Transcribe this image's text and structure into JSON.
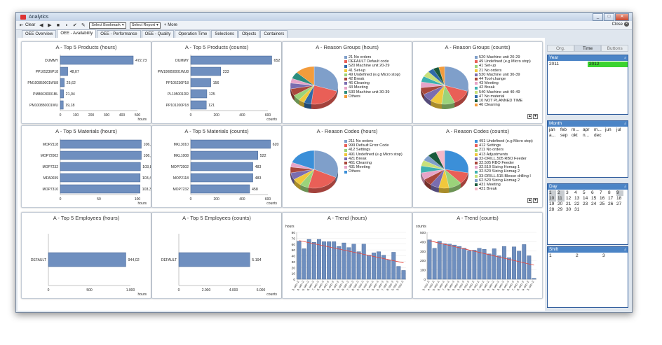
{
  "window": {
    "title": "Analytics",
    "win_buttons": [
      "_",
      "□",
      "✕"
    ]
  },
  "toolbar": {
    "clear": "Clear",
    "bookmark": "Select Bookmark",
    "report": "Select Report",
    "more": "More",
    "close": "Close"
  },
  "tabs": [
    "OEE Overview",
    "OEE - Availability",
    "OEE - Performance",
    "OEE - Quality",
    "Operation Time",
    "Selections",
    "Objects",
    "Containers"
  ],
  "active_tab": 1,
  "panels": {
    "p1": {
      "title": "A - Top 5 Products (hours)"
    },
    "p2": {
      "title": "A - Top 5 Products (counts)"
    },
    "p3": {
      "title": "A - Reason Groups (hours)"
    },
    "p4": {
      "title": "A - Reason Groups (counts)"
    },
    "p5": {
      "title": "A - Top 5 Materials (hours)"
    },
    "p6": {
      "title": "A - Top 5 Materials (counts)"
    },
    "p7": {
      "title": "A - Reason Codes (hours)"
    },
    "p8": {
      "title": "A - Reason Codes (counts)"
    },
    "p9": {
      "title": "A - Top 5 Employees (hours)"
    },
    "p10": {
      "title": "A - Top 5 Employees (counts)"
    },
    "p11": {
      "title": "A - Trend (hours)"
    },
    "p12": {
      "title": "A - Trend (counts)"
    }
  },
  "chart_data": [
    {
      "id": "p1",
      "type": "bar",
      "orientation": "horizontal",
      "title": "A - Top 5 Products (hours)",
      "categories": [
        "DUMMY",
        "PP105236P18",
        "PM100850001WU8",
        "PM80630001BL",
        "PM100850001WU"
      ],
      "values": [
        472.73,
        48.07,
        25.62,
        21.04,
        19.18
      ],
      "value_labels": [
        "472,73",
        "48,07",
        "25,62",
        "21,04",
        "19,18"
      ],
      "xlim": [
        0,
        500
      ],
      "ticks": [
        "0",
        "100",
        "200",
        "300",
        "400",
        "500"
      ],
      "xlabel": "hours"
    },
    {
      "id": "p2",
      "type": "bar",
      "orientation": "horizontal",
      "title": "A - Top 5 Products (counts)",
      "categories": [
        "DUMMY",
        "PW100850001WU8",
        "PP105236P18",
        "PL105001DR",
        "PP101200P18"
      ],
      "values": [
        652,
        233,
        156,
        125,
        121
      ],
      "value_labels": [
        "652",
        "233",
        "156",
        "125",
        "121"
      ],
      "xlim": [
        0,
        600
      ],
      "ticks": [
        "0",
        "200",
        "400",
        "600"
      ],
      "xlabel": "counts"
    },
    {
      "id": "p5",
      "type": "bar",
      "orientation": "horizontal",
      "title": "A - Top 5 Materials (hours)",
      "categories": [
        "MOP2118",
        "MOP72002",
        "MOP7232",
        "MFA0039",
        "MOP7310"
      ],
      "values": [
        106.15,
        106.15,
        103.88,
        103.47,
        103.32
      ],
      "value_labels": [
        "106,15",
        "106,15",
        "103,88",
        "103,47",
        "103,32"
      ],
      "xlim": [
        0,
        100
      ],
      "ticks": [
        "0",
        "50",
        "100"
      ],
      "xlabel": "hours"
    },
    {
      "id": "p6",
      "type": "bar",
      "orientation": "horizontal",
      "title": "A - Top 5 Materials (counts)",
      "categories": [
        "MKL3010",
        "MKL1008",
        "MOP72002",
        "MOP2118",
        "MOP7232"
      ],
      "values": [
        620,
        522,
        483,
        483,
        458
      ],
      "value_labels": [
        "620",
        "522",
        "483",
        "483",
        "458"
      ],
      "xlim": [
        0,
        600
      ],
      "ticks": [
        "0",
        "200",
        "400",
        "600"
      ],
      "xlabel": "counts"
    },
    {
      "id": "p9",
      "type": "bar",
      "orientation": "horizontal",
      "title": "A - Top 5 Employees (hours)",
      "categories": [
        "DEFAULT"
      ],
      "values": [
        944.02
      ],
      "value_labels": [
        "944,02"
      ],
      "xlim": [
        0,
        1000
      ],
      "ticks": [
        "0",
        "500",
        "1.000"
      ],
      "xlabel": "hours"
    },
    {
      "id": "p10",
      "type": "bar",
      "orientation": "horizontal",
      "title": "A - Top 5 Employees (counts)",
      "categories": [
        "DEFAULT"
      ],
      "values": [
        5194
      ],
      "value_labels": [
        "5.194"
      ],
      "xlim": [
        0,
        6000
      ],
      "ticks": [
        "0",
        "2.000",
        "4.000",
        "6.000"
      ],
      "xlabel": "counts"
    },
    {
      "id": "p3",
      "type": "pie",
      "title": "A - Reason Groups (hours)",
      "labels": [
        "21 No orders",
        "DEFAULT Default code",
        "520 Machine unit 20-29",
        "41 Set-up",
        "49 Undefined (e.g Micro stop)",
        "42 Break",
        "46 Cleaning",
        "43 Meeting",
        "530 Machine unit 30-39",
        "Others"
      ],
      "values": [
        30,
        22,
        5,
        4,
        5,
        6,
        5,
        4,
        6,
        13
      ],
      "colors": [
        "#7f9fca",
        "#e95f57",
        "#2f6aa8",
        "#f0c83c",
        "#9bd37a",
        "#a9473c",
        "#7a6db0",
        "#e6a4c8",
        "#2c8d7e",
        "#f39c3c"
      ]
    },
    {
      "id": "p4",
      "type": "pie",
      "title": "A - Reason Groups (counts)",
      "labels": [
        "520 Machine unit 20-29",
        "49 Undefined (e.g Micro stop)",
        "41 Set-up",
        "21 No orders",
        "530 Machine unit 30-39",
        "44 Tool-change",
        "43 Meeting",
        "42 Break",
        "540 Machine unit 40-49",
        "47 No material",
        "10 NOT PLANNED TIME",
        "46 Cleaning"
      ],
      "values": [
        30,
        13,
        9,
        8,
        7,
        6,
        5,
        5,
        5,
        4,
        4,
        4
      ],
      "colors": [
        "#7f9fca",
        "#e95f57",
        "#9bd37a",
        "#f0c83c",
        "#7a6db0",
        "#a9473c",
        "#e6a4c8",
        "#3db0b0",
        "#c8e07a",
        "#2f6aa8",
        "#1b5a3c",
        "#f39c3c"
      ]
    },
    {
      "id": "p7",
      "type": "pie",
      "title": "A - Reason Codes (hours)",
      "labels": [
        "211 No orders",
        "999 Default Error Code",
        "412 Settings",
        "491 Undefined (e.g Micro stop)",
        "421 Break",
        "461 Cleaning",
        "431 Meeting",
        "Others"
      ],
      "values": [
        32,
        22,
        6,
        6,
        6,
        5,
        4,
        19
      ],
      "colors": [
        "#7f9fca",
        "#e95f57",
        "#9bd37a",
        "#f0c83c",
        "#7a6db0",
        "#a9473c",
        "#e6a4c8",
        "#3b8fd8"
      ]
    },
    {
      "id": "p8",
      "type": "pie",
      "title": "A - Reason Codes (counts)",
      "labels": [
        "491 Undefined (e.g Micro stop)",
        "412 Settings",
        "211 No orders",
        "413 Adjustments",
        "32-DRILL.505 RBO Feeder",
        "32.505 RBO Feeder",
        "32.510 Sizing Homag 1",
        "32.520 Sizing Homag 2",
        "33-DRILL.515 Blesse drilling l",
        "62.520 Sizing Homag 2",
        "431 Meeting",
        "421 Break"
      ],
      "values": [
        28,
        10,
        9,
        7,
        6,
        6,
        6,
        6,
        5,
        5,
        6,
        6
      ],
      "colors": [
        "#3b8fd8",
        "#e95f57",
        "#9bd37a",
        "#f0c83c",
        "#7a6db0",
        "#a9473c",
        "#e6a4c8",
        "#3db0b0",
        "#c8e07a",
        "#7f9fca",
        "#1b5a3c",
        "#f5b8c8"
      ]
    },
    {
      "id": "p11",
      "type": "bar",
      "title": "A - Trend (hours)",
      "ylabel": "hours",
      "ylim": [
        0,
        80
      ],
      "yticks": [
        "0",
        "10",
        "20",
        "30",
        "40",
        "50",
        "60",
        "70",
        "80"
      ],
      "values": [
        65,
        52,
        68,
        63,
        68,
        64,
        64,
        64,
        56,
        62,
        54,
        60,
        47,
        60,
        41,
        45,
        47,
        41,
        33,
        46,
        22,
        15
      ],
      "trend": [
        66,
        28
      ],
      "x_labels": [
        "3.-sep.-2",
        "4.-sep.-2",
        "5.-sep.-2",
        "6.-sep.-2",
        "7.-sep.-2",
        "8.-sep.-2",
        "9.-sep.-2",
        "3.-sep.-2",
        "4.-sep.-2",
        "5.-sep.-2",
        "6.-sep.-2",
        "7.-sep.-2",
        "8.-sep.-2",
        "9.-sep.-2",
        "3.-sep.-2",
        "4.-sep.-2",
        "5.-sep.-2",
        "6.-sep.-2",
        "7.-sep.-2",
        "8.-sep.-2",
        "9.-sep.-2",
        "3.-sep.-2"
      ]
    },
    {
      "id": "p12",
      "type": "bar",
      "title": "A - Trend (counts)",
      "ylabel": "counts",
      "ylim": [
        0,
        500
      ],
      "yticks": [
        "0",
        "100",
        "200",
        "300",
        "400",
        "500"
      ],
      "values": [
        420,
        330,
        405,
        380,
        375,
        365,
        350,
        330,
        305,
        310,
        330,
        320,
        270,
        325,
        250,
        350,
        230,
        345,
        300,
        370,
        250,
        10
      ],
      "trend": [
        410,
        150
      ],
      "x_labels": [
        "3.-sep.-2",
        "4.-sep.-2",
        "5.-sep.-2",
        "6.-sep.-2",
        "7.-sep.-2",
        "8.-sep.-2",
        "9.-sep.-2",
        "3.-sep.-2",
        "4.-sep.-2",
        "5.-sep.-2",
        "6.-sep.-2",
        "7.-sep.-2",
        "8.-sep.-2",
        "9.-sep.-2",
        "3.-sep.-2",
        "4.-sep.-2",
        "5.-sep.-2",
        "6.-sep.-2",
        "7.-sep.-2",
        "8.-sep.-2",
        "9.-sep.-2",
        "3.-sep.-2"
      ]
    }
  ],
  "sidebar": {
    "tabs": [
      "Org.",
      "Time",
      "Buttons"
    ],
    "year": {
      "title": "Year",
      "values": [
        "2011",
        "2012"
      ]
    },
    "month": {
      "title": "Month",
      "values": [
        "jan",
        "feb",
        "m...",
        "apr",
        "m...",
        "jun",
        "jul",
        "a...",
        "sep",
        "okt",
        "n...",
        "dec"
      ]
    },
    "day": {
      "title": "Day",
      "values": [
        "1",
        "2",
        "3",
        "4",
        "5",
        "6",
        "7",
        "8",
        "9",
        "10",
        "11",
        "12",
        "13",
        "14",
        "15",
        "16",
        "17",
        "18",
        "19",
        "20",
        "21",
        "22",
        "23",
        "24",
        "25",
        "26",
        "27",
        "28",
        "29",
        "30",
        "31"
      ]
    },
    "shift": {
      "title": "Shift",
      "values": [
        "1",
        "2",
        "3"
      ]
    }
  },
  "colors": {
    "bar": "#6f8fbf",
    "bar_edge": "#3f5f8f",
    "trend_line": "#e8443a",
    "select_green": "#3bd32f",
    "listbox_header": "#4b84c6"
  }
}
